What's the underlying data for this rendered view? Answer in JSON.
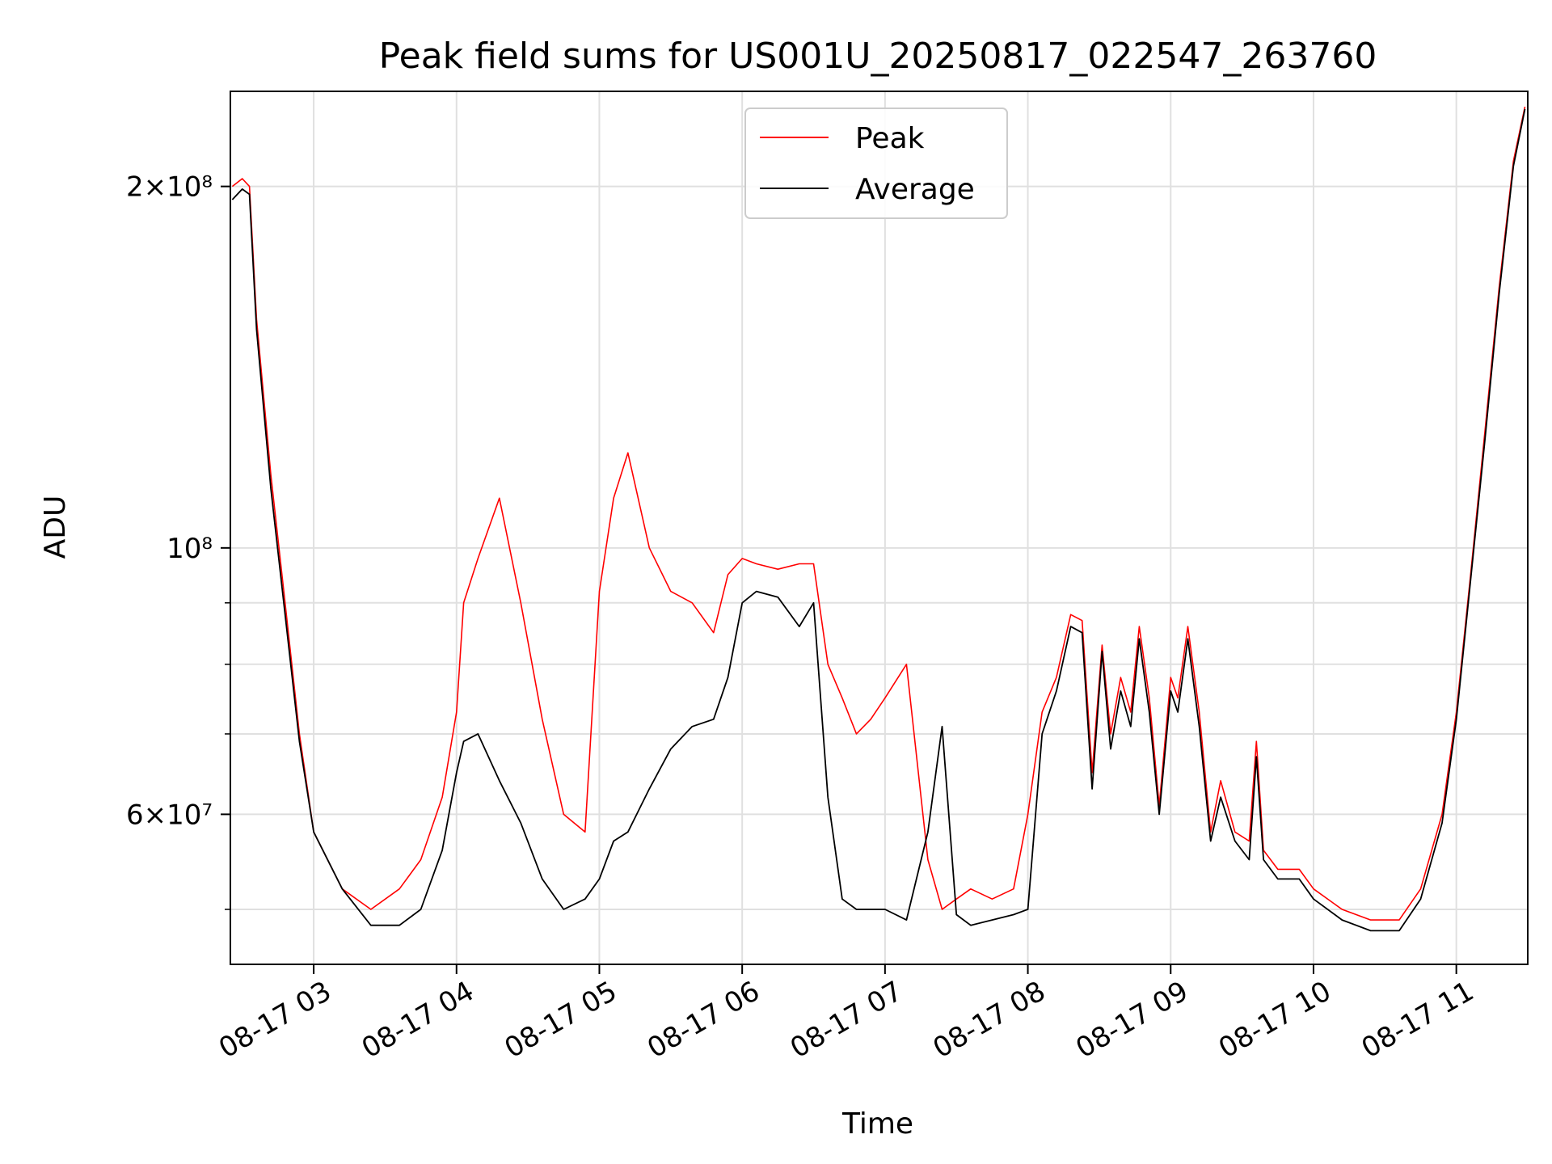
{
  "chart_data": {
    "type": "line",
    "title": "Peak field sums for US001U_20250817_022547_263760",
    "xlabel": "Time",
    "ylabel": "ADU",
    "y_scale": "log",
    "ylim": [
      45000000,
      240000000
    ],
    "xlim": [
      "08-17 02:25",
      "08-17 11:30"
    ],
    "grid": true,
    "legend_position": "top-center",
    "x_ticks": [
      "08-17 03",
      "08-17 04",
      "08-17 05",
      "08-17 06",
      "08-17 07",
      "08-17 08",
      "08-17 09",
      "08-17 10",
      "08-17 11"
    ],
    "y_ticks_labeled": [
      {
        "value": 200000000,
        "label": "2×10⁸"
      },
      {
        "value": 100000000,
        "label": "10⁸"
      },
      {
        "value": 60000000,
        "label": "6×10⁷"
      }
    ],
    "y_ticks_minor": [
      50000000,
      70000000,
      80000000,
      90000000
    ],
    "x_units": "hours since 08-17 00:00",
    "series": [
      {
        "name": "Peak",
        "color": "#ff0000",
        "x": [
          2.43,
          2.5,
          2.55,
          2.6,
          2.7,
          2.8,
          2.9,
          3.0,
          3.2,
          3.4,
          3.6,
          3.75,
          3.9,
          4.0,
          4.05,
          4.15,
          4.3,
          4.45,
          4.6,
          4.75,
          4.9,
          5.0,
          5.1,
          5.2,
          5.35,
          5.5,
          5.65,
          5.8,
          5.9,
          6.0,
          6.1,
          6.25,
          6.4,
          6.5,
          6.6,
          6.7,
          6.8,
          6.9,
          7.0,
          7.15,
          7.3,
          7.4,
          7.5,
          7.6,
          7.75,
          7.9,
          8.0,
          8.1,
          8.2,
          8.3,
          8.38,
          8.45,
          8.52,
          8.58,
          8.65,
          8.72,
          8.78,
          8.85,
          8.92,
          9.0,
          9.05,
          9.12,
          9.2,
          9.28,
          9.35,
          9.45,
          9.55,
          9.6,
          9.65,
          9.75,
          9.9,
          10.0,
          10.2,
          10.4,
          10.6,
          10.75,
          10.9,
          11.0,
          11.1,
          11.2,
          11.3,
          11.4,
          11.48
        ],
        "y": [
          200000000,
          203000000,
          200000000,
          155000000,
          115000000,
          90000000,
          70000000,
          58000000,
          52000000,
          50000000,
          52000000,
          55000000,
          62000000,
          73000000,
          90000000,
          98000000,
          110000000,
          90000000,
          72000000,
          60000000,
          58000000,
          92000000,
          110000000,
          120000000,
          100000000,
          92000000,
          90000000,
          85000000,
          95000000,
          98000000,
          97000000,
          96000000,
          97000000,
          97000000,
          80000000,
          75000000,
          70000000,
          72000000,
          75000000,
          80000000,
          55000000,
          50000000,
          51000000,
          52000000,
          51000000,
          52000000,
          60000000,
          73000000,
          78000000,
          88000000,
          87000000,
          65000000,
          83000000,
          70000000,
          78000000,
          73000000,
          86000000,
          75000000,
          61000000,
          78000000,
          75000000,
          86000000,
          73000000,
          58000000,
          64000000,
          58000000,
          57000000,
          69000000,
          56000000,
          54000000,
          54000000,
          52000000,
          50000000,
          49000000,
          49000000,
          52000000,
          60000000,
          73000000,
          95000000,
          125000000,
          165000000,
          210000000,
          233000000
        ]
      },
      {
        "name": "Average",
        "color": "#000000",
        "x": [
          2.43,
          2.5,
          2.55,
          2.6,
          2.7,
          2.8,
          2.9,
          3.0,
          3.2,
          3.4,
          3.6,
          3.75,
          3.9,
          4.0,
          4.05,
          4.15,
          4.3,
          4.45,
          4.6,
          4.75,
          4.9,
          5.0,
          5.1,
          5.2,
          5.35,
          5.5,
          5.65,
          5.8,
          5.9,
          6.0,
          6.1,
          6.25,
          6.4,
          6.5,
          6.6,
          6.7,
          6.8,
          6.9,
          7.0,
          7.15,
          7.3,
          7.4,
          7.5,
          7.6,
          7.75,
          7.9,
          8.0,
          8.1,
          8.2,
          8.3,
          8.38,
          8.45,
          8.52,
          8.58,
          8.65,
          8.72,
          8.78,
          8.85,
          8.92,
          9.0,
          9.05,
          9.12,
          9.2,
          9.28,
          9.35,
          9.45,
          9.55,
          9.6,
          9.65,
          9.75,
          9.9,
          10.0,
          10.2,
          10.4,
          10.6,
          10.75,
          10.9,
          11.0,
          11.1,
          11.2,
          11.3,
          11.4,
          11.48
        ],
        "y": [
          195000000,
          199000000,
          197000000,
          152000000,
          112000000,
          88000000,
          69000000,
          58000000,
          52000000,
          48500000,
          48500000,
          50000000,
          56000000,
          65000000,
          69000000,
          70000000,
          64000000,
          59000000,
          53000000,
          50000000,
          51000000,
          53000000,
          57000000,
          58000000,
          63000000,
          68000000,
          71000000,
          72000000,
          78000000,
          90000000,
          92000000,
          91000000,
          86000000,
          90000000,
          62000000,
          51000000,
          50000000,
          50000000,
          50000000,
          49000000,
          58000000,
          71000000,
          49500000,
          48500000,
          49000000,
          49500000,
          50000000,
          70000000,
          76000000,
          86000000,
          85000000,
          63000000,
          82000000,
          68000000,
          76000000,
          71000000,
          84000000,
          73000000,
          60000000,
          76000000,
          73000000,
          84000000,
          71000000,
          57000000,
          62000000,
          57000000,
          55000000,
          67000000,
          55000000,
          53000000,
          53000000,
          51000000,
          49000000,
          48000000,
          48000000,
          51000000,
          59000000,
          72000000,
          94000000,
          123000000,
          163000000,
          208000000,
          232000000
        ]
      }
    ]
  }
}
